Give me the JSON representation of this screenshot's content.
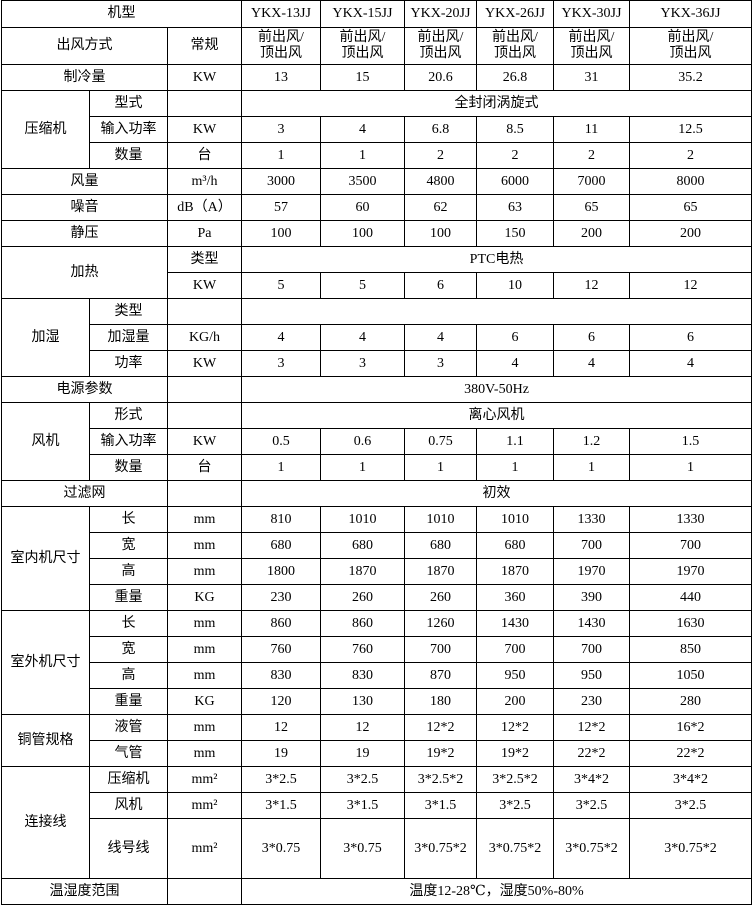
{
  "table": {
    "rows": [
      [
        "机型",
        "YKX-13JJ",
        "YKX-15JJ",
        "YKX-20JJ",
        "YKX-26JJ",
        "YKX-30JJ",
        "YKX-36JJ"
      ],
      [
        "出风方式",
        "常规",
        "前出风/\n顶出风",
        "前出风/\n顶出风",
        "前出风/\n顶出风",
        "前出风/\n顶出风",
        "前出风/\n顶出风",
        "前出风/\n顶出风"
      ],
      [
        "制冷量",
        "KW",
        "13",
        "15",
        "20.6",
        "26.8",
        "31",
        "35.2"
      ],
      [
        "压缩机",
        "型式",
        "全封闭涡旋式"
      ],
      [
        "输入功率",
        "KW",
        "3",
        "4",
        "6.8",
        "8.5",
        "11",
        "12.5"
      ],
      [
        "数量",
        "台",
        "1",
        "1",
        "2",
        "2",
        "2",
        "2"
      ],
      [
        "风量",
        "m³/h",
        "3000",
        "3500",
        "4800",
        "6000",
        "7000",
        "8000"
      ],
      [
        "噪音",
        "dB（A）",
        "57",
        "60",
        "62",
        "63",
        "65",
        "65"
      ],
      [
        "静压",
        "Pa",
        "100",
        "100",
        "100",
        "150",
        "200",
        "200"
      ],
      [
        "加热",
        "类型",
        "PTC电热"
      ],
      [
        "KW",
        "5",
        "5",
        "6",
        "10",
        "12",
        "12"
      ],
      [
        "加湿",
        "类型"
      ],
      [
        "加湿量",
        "KG/h",
        "4",
        "4",
        "4",
        "6",
        "6",
        "6"
      ],
      [
        "功率",
        "KW",
        "3",
        "3",
        "3",
        "4",
        "4",
        "4"
      ],
      [
        "电源参数",
        "380V-50Hz"
      ],
      [
        "风机",
        "形式",
        "离心风机"
      ],
      [
        "输入功率",
        "KW",
        "0.5",
        "0.6",
        "0.75",
        "1.1",
        "1.2",
        "1.5"
      ],
      [
        "数量",
        "台",
        "1",
        "1",
        "1",
        "1",
        "1",
        "1"
      ],
      [
        "过滤网",
        "初效"
      ],
      [
        "室内机尺寸",
        "长",
        "mm",
        "810",
        "1010",
        "1010",
        "1010",
        "1330",
        "1330"
      ],
      [
        "宽",
        "mm",
        "680",
        "680",
        "680",
        "680",
        "700",
        "700"
      ],
      [
        "高",
        "mm",
        "1800",
        "1870",
        "1870",
        "1870",
        "1970",
        "1970"
      ],
      [
        "重量",
        "KG",
        "230",
        "260",
        "260",
        "360",
        "390",
        "440"
      ],
      [
        "室外机尺寸",
        "长",
        "mm",
        "860",
        "860",
        "1260",
        "1430",
        "1430",
        "1630"
      ],
      [
        "宽",
        "mm",
        "760",
        "760",
        "700",
        "700",
        "700",
        "850"
      ],
      [
        "高",
        "mm",
        "830",
        "830",
        "870",
        "950",
        "950",
        "1050"
      ],
      [
        "重量",
        "KG",
        "120",
        "130",
        "180",
        "200",
        "230",
        "280"
      ],
      [
        "铜管规格",
        "液管",
        "mm",
        "12",
        "12",
        "12*2",
        "12*2",
        "12*2",
        "16*2"
      ],
      [
        "气管",
        "mm",
        "19",
        "19",
        "19*2",
        "19*2",
        "22*2",
        "22*2"
      ],
      [
        "连接线",
        "压缩机",
        "mm²",
        "3*2.5",
        "3*2.5",
        "3*2.5*2",
        "3*2.5*2",
        "3*4*2",
        "3*4*2"
      ],
      [
        "风机",
        "mm²",
        "3*1.5",
        "3*1.5",
        "3*1.5",
        "3*2.5",
        "3*2.5",
        "3*2.5"
      ],
      [
        "线号线",
        "mm²",
        "3*0.75",
        "3*0.75",
        "3*0.75*2",
        "3*0.75*2",
        "3*0.75*2",
        "3*0.75*2"
      ],
      [
        "温湿度范围",
        "温度12-28℃，湿度50%-80%"
      ]
    ]
  }
}
